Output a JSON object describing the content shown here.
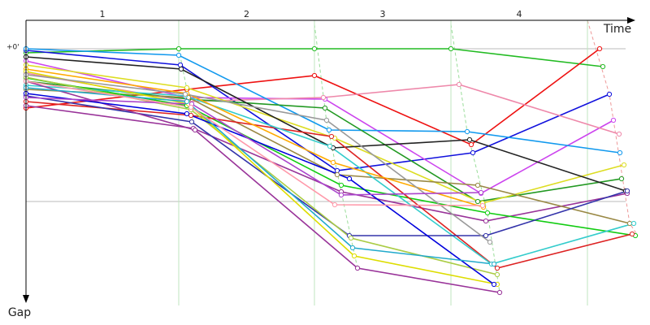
{
  "chart_data": {
    "type": "line",
    "x_label": "Time",
    "y_label": "Gap",
    "xlim": [
      0,
      74.8
    ],
    "ylim": [
      0,
      31
    ],
    "lap_labels": [
      "1",
      "2",
      "3",
      "4"
    ],
    "lap_ends": [
      18.8,
      35.5,
      52.3,
      69.1
    ],
    "yticks": [
      {
        "value": 0,
        "label": "+0'"
      }
    ],
    "grid_y": [
      0,
      18.8
    ],
    "series": [
      {
        "color": "#22bb22",
        "x": [
          0,
          18.8,
          35.5,
          52.3,
          71
        ],
        "values": [
          0.5,
          0,
          0,
          0,
          2.2
        ]
      },
      {
        "color": "#ee1111",
        "x": [
          0,
          19.8,
          35.5,
          54.8,
          70.6
        ],
        "values": [
          7.3,
          5,
          3.3,
          11.8,
          0
        ]
      },
      {
        "color": "#1111dd",
        "x": [
          0,
          19,
          38.3,
          55,
          71.8
        ],
        "values": [
          0.2,
          2,
          15,
          12.8,
          5.6
        ]
      },
      {
        "color": "#cc44ee",
        "x": [
          0,
          19.8,
          36.8,
          56,
          72.3
        ],
        "values": [
          1.5,
          6,
          6.2,
          17.8,
          8.8
        ]
      },
      {
        "color": "#ee88aa",
        "x": [
          0,
          20,
          36.6,
          53.3,
          73
        ],
        "values": [
          3,
          6.5,
          6,
          4.4,
          10.5
        ]
      },
      {
        "color": "#1199ee",
        "x": [
          0,
          18.8,
          37.3,
          54.3,
          73.1
        ],
        "values": [
          0,
          0.8,
          10,
          10.2,
          12.8
        ]
      },
      {
        "color": "#229922",
        "x": [
          0,
          20,
          36.8,
          55.6,
          73.3
        ],
        "values": [
          4,
          6.2,
          7.3,
          18.8,
          16
        ]
      },
      {
        "color": "#dddd22",
        "x": [
          0,
          19.8,
          38,
          56.2,
          73.6
        ],
        "values": [
          2,
          4.8,
          11,
          19,
          14.3
        ]
      },
      {
        "color": "#222222",
        "x": [
          0,
          19.1,
          37.8,
          54.6,
          73.8
        ],
        "values": [
          1,
          2.5,
          12.2,
          11.2,
          17.5
        ]
      },
      {
        "color": "#993399",
        "x": [
          0,
          20.6,
          38.8,
          56.6,
          74
        ],
        "values": [
          7,
          9.8,
          17.6,
          21.2,
          17.8
        ]
      },
      {
        "color": "#998844",
        "x": [
          0,
          20,
          38.3,
          55.6,
          74.3
        ],
        "values": [
          5,
          6,
          15.5,
          16.8,
          21.5
        ]
      },
      {
        "color": "#11cc11",
        "x": [
          0,
          19.8,
          38.8,
          56.8,
          75
        ],
        "values": [
          3.6,
          7,
          16.8,
          20.2,
          23
        ]
      },
      {
        "color": "#dd2222",
        "x": [
          0,
          20.3,
          37.6,
          58,
          74.6
        ],
        "values": [
          6.5,
          8.2,
          10.8,
          27,
          22.8
        ]
      },
      {
        "color": "#33cccc",
        "x": [
          0,
          19.6,
          37.4,
          57.3,
          74.8
        ],
        "values": [
          4.5,
          5.8,
          12,
          26.5,
          21.5
        ]
      },
      {
        "color": "#3333aa",
        "x": [
          0,
          20.4,
          39.8,
          56.6,
          74
        ],
        "values": [
          5.8,
          9,
          23,
          23,
          17.5
        ]
      },
      {
        "color": "#ffaa00",
        "x": [
          0,
          19.8,
          37.8,
          56.3
        ],
        "values": [
          2.5,
          5.5,
          14,
          19.5
        ]
      },
      {
        "color": "#aacc44",
        "x": [
          0,
          20.3,
          40,
          58
        ],
        "values": [
          3.5,
          7.5,
          23.3,
          27.8
        ]
      },
      {
        "color": "#993399",
        "x": [
          0,
          20.8,
          40.8,
          58.3
        ],
        "values": [
          4,
          10,
          27,
          30
        ]
      },
      {
        "color": "#dddd00",
        "x": [
          0,
          20,
          40.4,
          58
        ],
        "values": [
          2.8,
          6.8,
          25.5,
          29
        ]
      },
      {
        "color": "#0000dd",
        "x": [
          0,
          19.8,
          39.8,
          57.6
        ],
        "values": [
          5.5,
          8,
          16,
          29
        ]
      },
      {
        "color": "#22aacc",
        "x": [
          0,
          19.8,
          40.2,
          57.6
        ],
        "values": [
          4.8,
          6.5,
          24.5,
          26.5
        ]
      },
      {
        "color": "#999999",
        "x": [
          0,
          19.6,
          37,
          57.1
        ],
        "values": [
          3.2,
          5.6,
          8.8,
          23.8
        ]
      },
      {
        "color": "#aa44cc",
        "x": [
          0,
          20.4,
          38.8,
          56
        ],
        "values": [
          6,
          6.8,
          18,
          17.7
        ]
      },
      {
        "color": "#ff99aa",
        "x": [
          0,
          20.3,
          38,
          56.2
        ],
        "values": [
          4,
          7.2,
          19.2,
          19.3
        ]
      }
    ]
  }
}
